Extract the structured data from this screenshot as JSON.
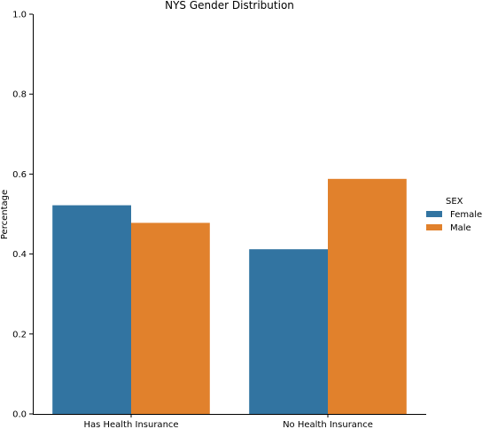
{
  "chart_data": {
    "type": "bar",
    "title": "NYS Gender Distribution",
    "xlabel": "",
    "ylabel": "Percentage",
    "categories": [
      "Has Health Insurance",
      "No Health Insurance"
    ],
    "series": [
      {
        "name": "Female",
        "color": "#3274a1",
        "values": [
          0.522,
          0.412
        ]
      },
      {
        "name": "Male",
        "color": "#e1812c",
        "values": [
          0.478,
          0.588
        ]
      }
    ],
    "ylim": [
      0,
      1.0
    ],
    "yticks": [
      "0.0",
      "0.2",
      "0.4",
      "0.6",
      "0.8",
      "1.0"
    ],
    "grid": false,
    "legend": {
      "title": "SEX",
      "position": "right"
    }
  }
}
